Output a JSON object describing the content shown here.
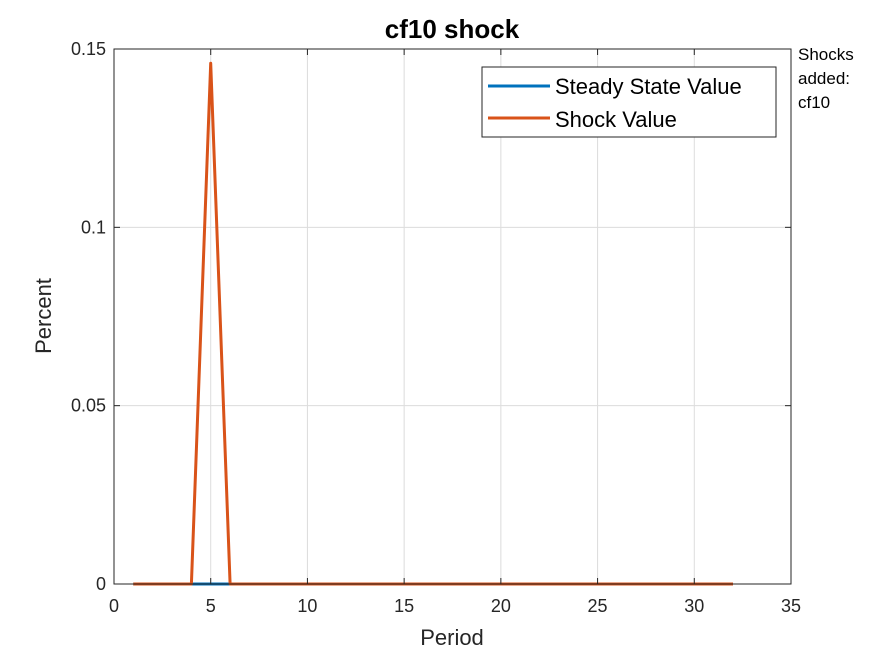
{
  "chart_data": {
    "type": "line",
    "title": "cf10 shock",
    "xlabel": "Period",
    "ylabel": "Percent",
    "xlim": [
      0,
      35
    ],
    "ylim": [
      0,
      0.15
    ],
    "xticks": [
      0,
      5,
      10,
      15,
      20,
      25,
      30,
      35
    ],
    "yticks": [
      0,
      0.05,
      0.1,
      0.15
    ],
    "ytick_labels": [
      "0",
      "0.05",
      "0.1",
      "0.15"
    ],
    "grid": true,
    "legend_position": "top-right",
    "series": [
      {
        "name": "Steady State Value",
        "color": "#0072BD",
        "x": [
          1,
          32
        ],
        "y": [
          0,
          0
        ]
      },
      {
        "name": "Shock Value",
        "color": "#D95319",
        "x": [
          1,
          2,
          3,
          4,
          5,
          6,
          7,
          8,
          32
        ],
        "y": [
          0,
          0,
          0,
          0,
          0.146,
          0,
          0,
          0,
          0
        ]
      }
    ]
  },
  "annotation": {
    "lines": [
      "Shocks",
      "added:",
      "cf10"
    ]
  }
}
